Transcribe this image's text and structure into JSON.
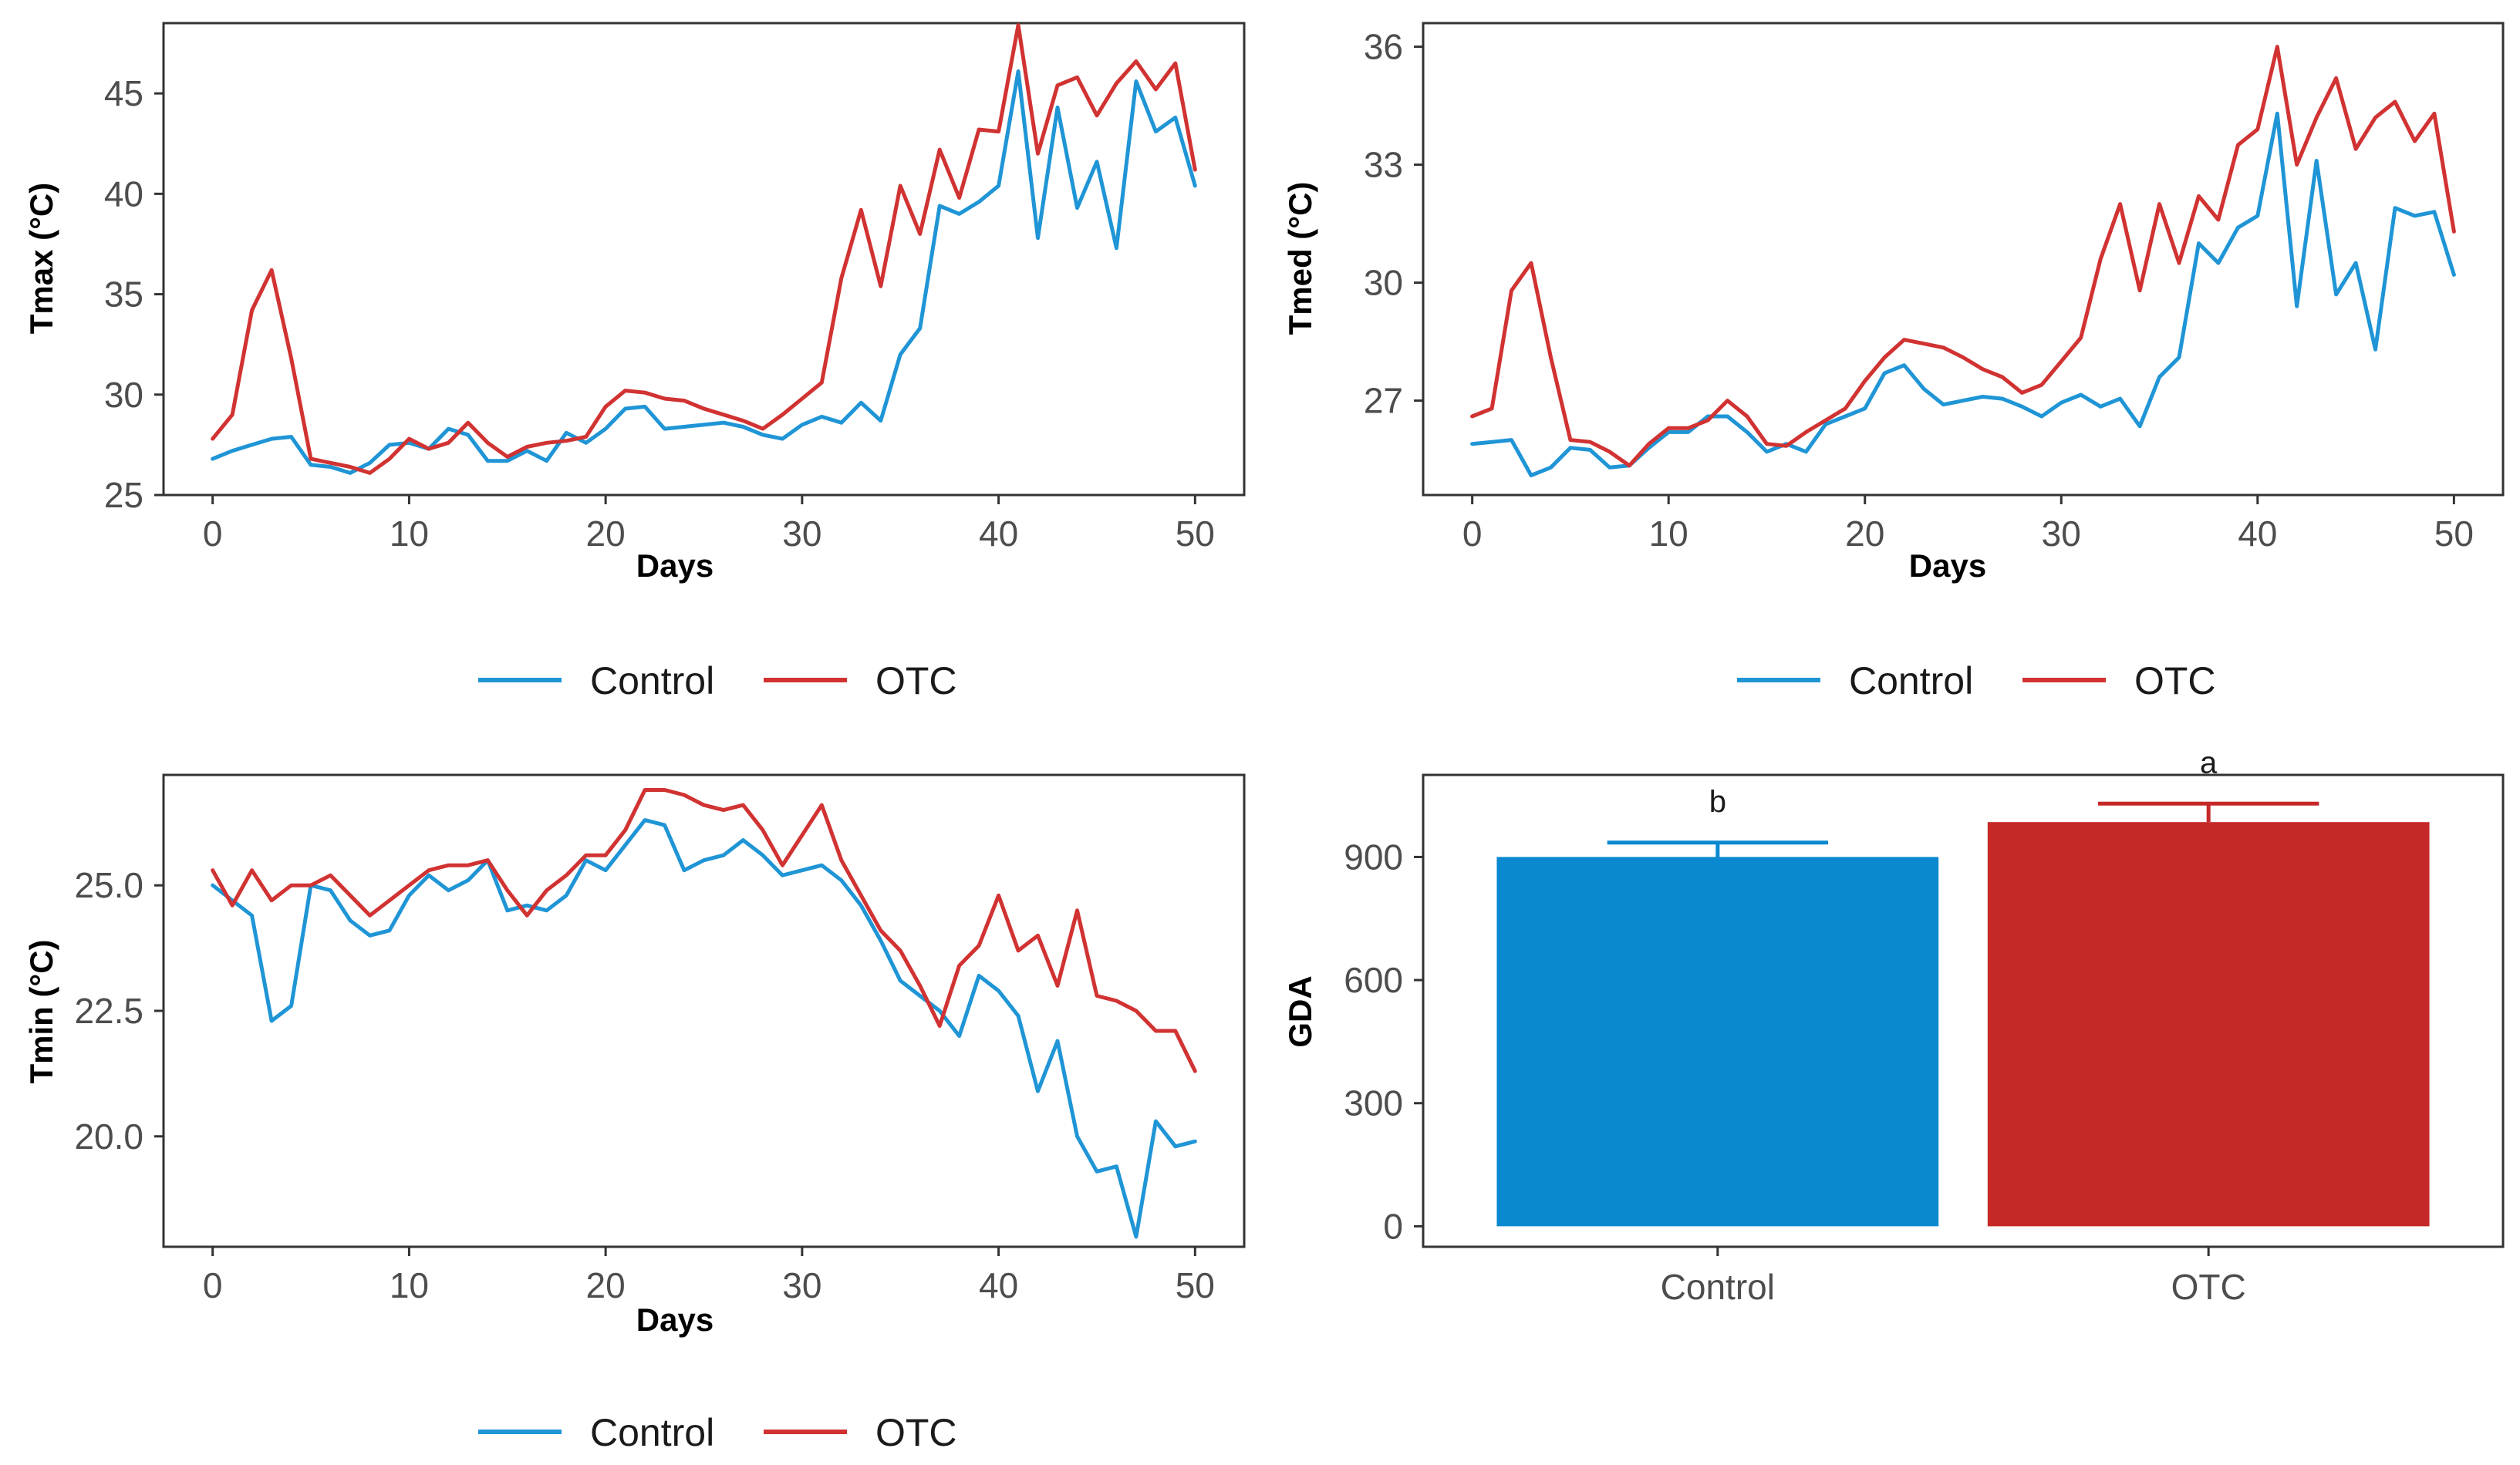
{
  "colors": {
    "control": "#1f95d6",
    "otc": "#d13232",
    "control_bar": "#0a88d0",
    "otc_bar": "#c62828"
  },
  "chart_data": [
    {
      "type": "line",
      "id": "tmax",
      "xlabel": "Days",
      "ylabel": "Tmax (°C)",
      "xlim": [
        -2.5,
        52.5
      ],
      "ylim": [
        25,
        48.5
      ],
      "xticks": [
        0,
        10,
        20,
        30,
        40,
        50
      ],
      "yticks": [
        25,
        30,
        35,
        40,
        45
      ],
      "x": [
        0,
        1,
        2,
        3,
        4,
        5,
        6,
        7,
        8,
        9,
        10,
        11,
        12,
        13,
        14,
        15,
        16,
        17,
        18,
        19,
        20,
        21,
        22,
        23,
        24,
        25,
        26,
        27,
        28,
        29,
        30,
        31,
        32,
        33,
        34,
        35,
        36,
        37,
        38,
        39,
        40,
        41,
        42,
        43,
        44,
        45,
        46,
        47,
        48,
        49,
        50
      ],
      "series": [
        {
          "name": "Control",
          "values": [
            26.8,
            27.2,
            27.5,
            27.8,
            27.9,
            26.5,
            26.4,
            26.1,
            26.6,
            27.5,
            27.6,
            27.3,
            28.3,
            28.0,
            26.7,
            26.7,
            27.2,
            26.7,
            28.1,
            27.6,
            28.3,
            29.3,
            29.4,
            28.3,
            28.4,
            28.5,
            28.6,
            28.4,
            28.0,
            27.8,
            28.5,
            28.9,
            28.6,
            29.6,
            28.7,
            32.0,
            33.3,
            39.4,
            39.0,
            39.6,
            40.4,
            46.1,
            37.8,
            44.3,
            39.3,
            41.6,
            37.3,
            45.6,
            43.1,
            43.8,
            40.4
          ]
        },
        {
          "name": "OTC",
          "values": [
            27.8,
            29.0,
            34.2,
            36.2,
            31.8,
            26.8,
            26.6,
            26.4,
            26.1,
            26.8,
            27.8,
            27.3,
            27.6,
            28.6,
            27.6,
            26.9,
            27.4,
            27.6,
            27.7,
            27.9,
            29.4,
            30.2,
            30.1,
            29.8,
            29.7,
            29.3,
            29.0,
            28.7,
            28.3,
            29.0,
            29.8,
            30.6,
            35.8,
            39.2,
            35.4,
            40.4,
            38.0,
            42.2,
            39.8,
            43.2,
            43.1,
            48.4,
            42.0,
            45.4,
            45.8,
            43.9,
            45.5,
            46.6,
            45.2,
            46.5,
            41.2
          ]
        }
      ]
    },
    {
      "type": "line",
      "id": "tmed",
      "xlabel": "Days",
      "ylabel": "Tmed (°C)",
      "xlim": [
        -2.5,
        52.5
      ],
      "ylim": [
        24.6,
        36.6
      ],
      "xticks": [
        0,
        10,
        20,
        30,
        40,
        50
      ],
      "yticks": [
        27,
        30,
        33,
        36
      ],
      "x": [
        0,
        1,
        2,
        3,
        4,
        5,
        6,
        7,
        8,
        9,
        10,
        11,
        12,
        13,
        14,
        15,
        16,
        17,
        18,
        19,
        20,
        21,
        22,
        23,
        24,
        25,
        26,
        27,
        28,
        29,
        30,
        31,
        32,
        33,
        34,
        35,
        36,
        37,
        38,
        39,
        40,
        41,
        42,
        43,
        44,
        45,
        46,
        47,
        48,
        49,
        50
      ],
      "series": [
        {
          "name": "Control",
          "values": [
            25.9,
            25.95,
            26.0,
            25.1,
            25.3,
            25.8,
            25.75,
            25.3,
            25.35,
            25.8,
            26.2,
            26.2,
            26.6,
            26.6,
            26.2,
            25.7,
            25.9,
            25.7,
            26.4,
            26.6,
            26.8,
            27.7,
            27.9,
            27.3,
            26.9,
            27.0,
            27.1,
            27.05,
            26.85,
            26.6,
            26.95,
            27.15,
            26.85,
            27.05,
            26.35,
            27.6,
            28.1,
            31.0,
            30.5,
            31.4,
            31.7,
            34.3,
            29.4,
            33.1,
            29.7,
            30.5,
            28.3,
            31.9,
            31.7,
            31.8,
            30.2
          ]
        },
        {
          "name": "OTC",
          "values": [
            26.6,
            26.8,
            29.8,
            30.5,
            28.1,
            26.0,
            25.95,
            25.7,
            25.35,
            25.9,
            26.3,
            26.3,
            26.5,
            27.0,
            26.6,
            25.9,
            25.85,
            26.2,
            26.5,
            26.8,
            27.5,
            28.1,
            28.55,
            28.45,
            28.35,
            28.1,
            27.8,
            27.6,
            27.2,
            27.4,
            28.0,
            28.6,
            30.6,
            32.0,
            29.8,
            32.0,
            30.5,
            32.2,
            31.6,
            33.5,
            33.9,
            36.0,
            33.0,
            34.2,
            35.2,
            33.4,
            34.2,
            34.6,
            33.6,
            34.3,
            31.3
          ]
        }
      ]
    },
    {
      "type": "line",
      "id": "tmin",
      "xlabel": "Days",
      "ylabel": "Tmin (°C)",
      "xlim": [
        -2.5,
        52.5
      ],
      "ylim": [
        17.8,
        27.2
      ],
      "xticks": [
        0,
        10,
        20,
        30,
        40,
        50
      ],
      "yticks": [
        20.0,
        22.5,
        25.0
      ],
      "ytick_labels": [
        "20.0",
        "22.5",
        "25.0"
      ],
      "x": [
        0,
        1,
        2,
        3,
        4,
        5,
        6,
        7,
        8,
        9,
        10,
        11,
        12,
        13,
        14,
        15,
        16,
        17,
        18,
        19,
        20,
        21,
        22,
        23,
        24,
        25,
        26,
        27,
        28,
        29,
        30,
        31,
        32,
        33,
        34,
        35,
        36,
        37,
        38,
        39,
        40,
        41,
        42,
        43,
        44,
        45,
        46,
        47,
        48,
        49,
        50
      ],
      "series": [
        {
          "name": "Control",
          "values": [
            25.0,
            24.7,
            24.4,
            22.3,
            22.6,
            25.0,
            24.9,
            24.3,
            24.0,
            24.1,
            24.8,
            25.2,
            24.9,
            25.1,
            25.5,
            24.5,
            24.6,
            24.5,
            24.8,
            25.5,
            25.3,
            25.8,
            26.3,
            26.2,
            25.3,
            25.5,
            25.6,
            25.9,
            25.6,
            25.2,
            25.3,
            25.4,
            25.1,
            24.6,
            23.9,
            23.1,
            22.8,
            22.5,
            22.0,
            23.2,
            22.9,
            22.4,
            20.9,
            21.9,
            20.0,
            19.3,
            19.4,
            18.0,
            20.3,
            19.8,
            19.9
          ]
        },
        {
          "name": "OTC",
          "values": [
            25.3,
            24.6,
            25.3,
            24.7,
            25.0,
            25.0,
            25.2,
            24.8,
            24.4,
            24.7,
            25.0,
            25.3,
            25.4,
            25.4,
            25.5,
            24.9,
            24.4,
            24.9,
            25.2,
            25.6,
            25.6,
            26.1,
            26.9,
            26.9,
            26.8,
            26.6,
            26.5,
            26.6,
            26.1,
            25.4,
            26.0,
            26.6,
            25.5,
            24.8,
            24.1,
            23.7,
            23.0,
            22.2,
            23.4,
            23.8,
            24.8,
            23.7,
            24.0,
            23.0,
            24.5,
            22.8,
            22.7,
            22.5,
            22.1,
            22.1,
            21.3
          ]
        }
      ]
    },
    {
      "type": "bar",
      "id": "gda",
      "xlabel": "",
      "ylabel": "GDA",
      "ylim": [
        -50,
        1100
      ],
      "yticks": [
        0,
        300,
        600,
        900
      ],
      "categories": [
        "Control",
        "OTC"
      ],
      "values": [
        900,
        985
      ],
      "error_upper": [
        935,
        1030
      ],
      "significance": [
        "b",
        "a"
      ]
    }
  ],
  "legends": [
    {
      "items": [
        "Control",
        "OTC"
      ]
    },
    {
      "items": [
        "Control",
        "OTC"
      ]
    },
    {
      "items": [
        "Control",
        "OTC"
      ]
    }
  ]
}
